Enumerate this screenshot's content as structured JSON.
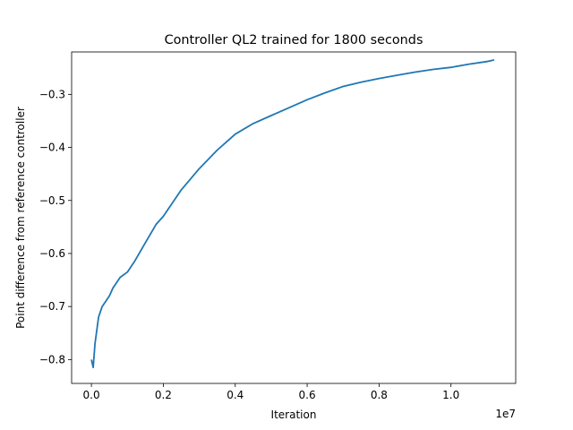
{
  "chart_data": {
    "type": "line",
    "title": "Controller QL2 trained for 1800 seconds",
    "xlabel": "Iteration",
    "ylabel": "Point difference from reference controller",
    "x_offset_label": "1e7",
    "xlim": [
      -0.055,
      1.18
    ],
    "ylim": [
      -0.845,
      -0.22
    ],
    "x_ticks": [
      0.0,
      0.2,
      0.4,
      0.6,
      0.8,
      1.0
    ],
    "x_tick_labels": [
      "0.0",
      "0.2",
      "0.4",
      "0.6",
      "0.8",
      "1.0"
    ],
    "y_ticks": [
      -0.8,
      -0.7,
      -0.6,
      -0.5,
      -0.4,
      -0.3
    ],
    "y_tick_labels": [
      "−0.8",
      "−0.7",
      "−0.6",
      "−0.5",
      "−0.4",
      "−0.3"
    ],
    "grid": false,
    "line_color": "#1f77b4",
    "series": [
      {
        "x": [
          0.0,
          0.005,
          0.01,
          0.015,
          0.02,
          0.025,
          0.03,
          0.04,
          0.05,
          0.06,
          0.08,
          0.1,
          0.12,
          0.15,
          0.18,
          0.2,
          0.25,
          0.3,
          0.35,
          0.4,
          0.45,
          0.5,
          0.55,
          0.6,
          0.65,
          0.7,
          0.75,
          0.8,
          0.85,
          0.9,
          0.95,
          1.0,
          1.05,
          1.1,
          1.12
        ],
        "y": [
          -0.8,
          -0.815,
          -0.77,
          -0.745,
          -0.72,
          -0.71,
          -0.7,
          -0.69,
          -0.68,
          -0.665,
          -0.645,
          -0.635,
          -0.615,
          -0.58,
          -0.545,
          -0.53,
          -0.48,
          -0.44,
          -0.405,
          -0.375,
          -0.355,
          -0.34,
          -0.325,
          -0.31,
          -0.297,
          -0.285,
          -0.277,
          -0.27,
          -0.264,
          -0.258,
          -0.253,
          -0.249,
          -0.243,
          -0.238,
          -0.235
        ]
      }
    ]
  }
}
